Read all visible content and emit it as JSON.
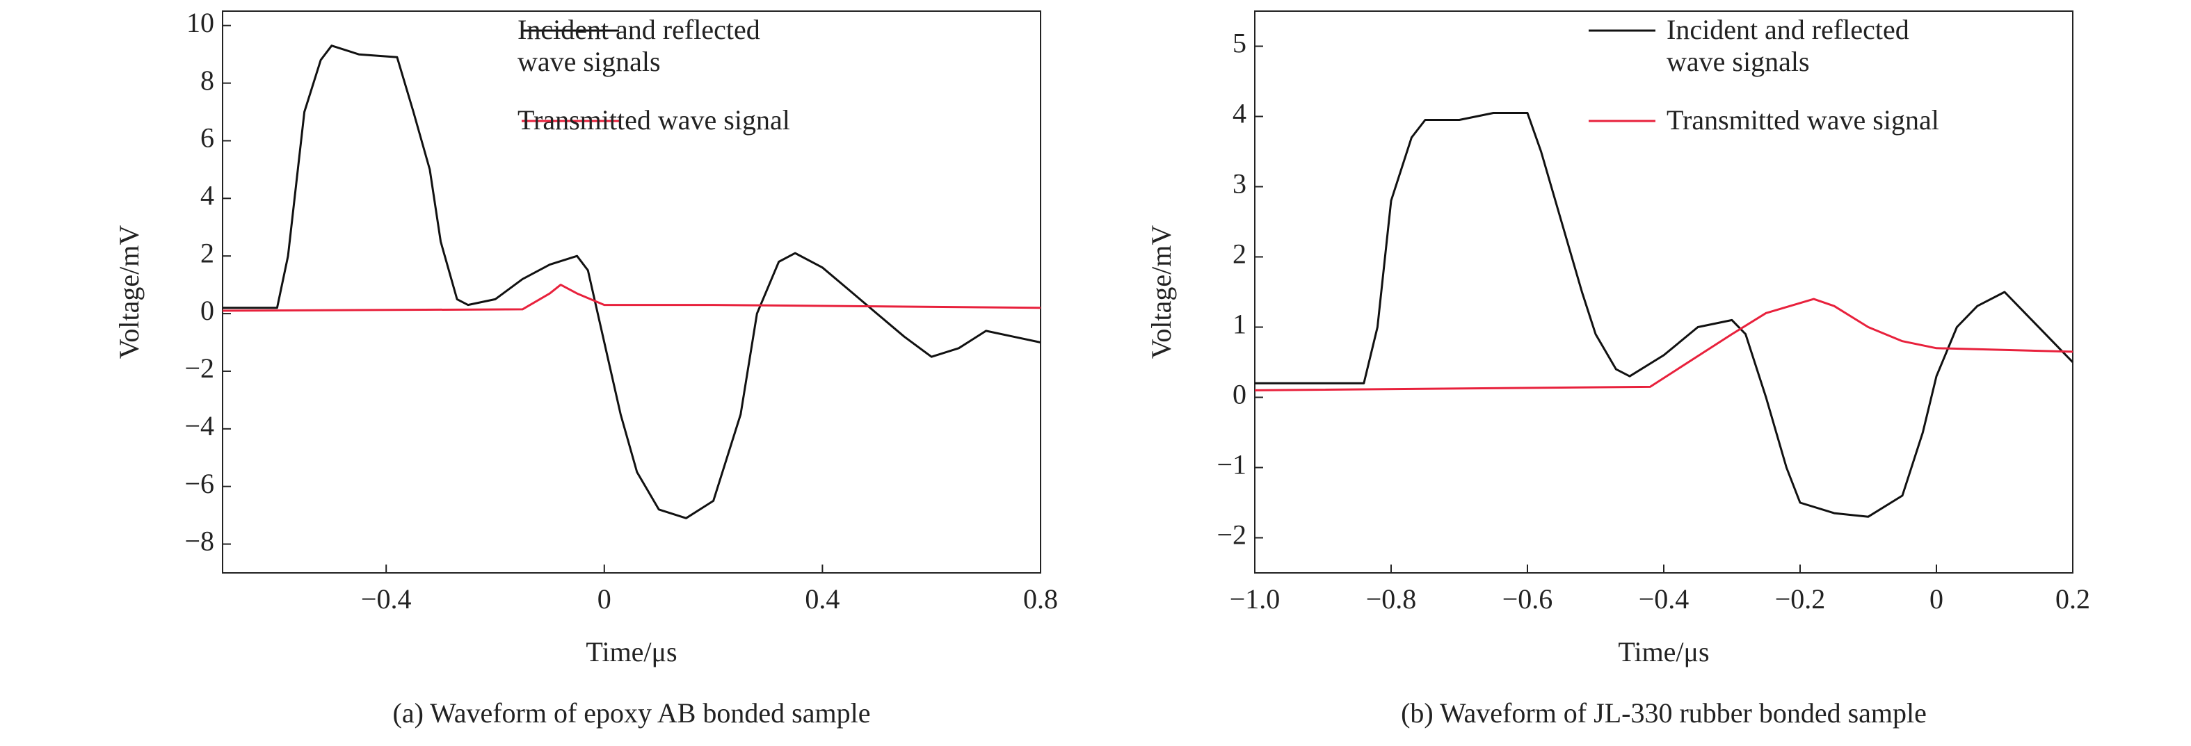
{
  "chart_data": [
    {
      "type": "line",
      "caption": "(a) Waveform of epoxy AB bonded sample",
      "xlabel": "Time/μs",
      "ylabel": "Voltage/mV",
      "xlim": [
        -0.7,
        0.8
      ],
      "xticks": [
        {
          "value": -0.4,
          "label": "−0.4"
        },
        0,
        0.4,
        0.8
      ],
      "ylim": [
        -9,
        10.5
      ],
      "yticks": [
        {
          "value": -8,
          "label": "−8"
        },
        {
          "value": -6,
          "label": "−6"
        },
        {
          "value": -4,
          "label": "−4"
        },
        {
          "value": -2,
          "label": "−2"
        },
        0,
        2,
        4,
        6,
        8,
        10
      ],
      "series": [
        {
          "name": "Incident and reflected wave signals",
          "color": "#111111",
          "x": [
            -0.7,
            -0.6,
            -0.58,
            -0.55,
            -0.52,
            -0.5,
            -0.45,
            -0.38,
            -0.35,
            -0.32,
            -0.3,
            -0.27,
            -0.25,
            -0.2,
            -0.15,
            -0.1,
            -0.05,
            -0.03,
            0,
            0.03,
            0.06,
            0.1,
            0.15,
            0.2,
            0.25,
            0.28,
            0.32,
            0.35,
            0.4,
            0.45,
            0.5,
            0.55,
            0.6,
            0.65,
            0.7,
            0.75,
            0.8
          ],
          "values": [
            0.2,
            0.2,
            2,
            7,
            8.8,
            9.3,
            9.0,
            8.9,
            7,
            5,
            2.5,
            0.5,
            0.3,
            0.5,
            1.2,
            1.7,
            2.0,
            1.5,
            -1,
            -3.5,
            -5.5,
            -6.8,
            -7.1,
            -6.5,
            -3.5,
            0,
            1.8,
            2.1,
            1.6,
            0.8,
            0,
            -0.8,
            -1.5,
            -1.2,
            -0.6,
            -0.8,
            -1.0
          ]
        },
        {
          "name": "Transmitted wave signal",
          "color": "#e8213c",
          "x": [
            -0.7,
            -0.15,
            -0.1,
            -0.08,
            -0.05,
            0,
            0.2,
            0.8
          ],
          "values": [
            0.1,
            0.15,
            0.7,
            1.0,
            0.7,
            0.3,
            0.3,
            0.2
          ]
        }
      ]
    },
    {
      "type": "line",
      "caption": "(b) Waveform of JL-330 rubber bonded sample",
      "xlabel": "Time/μs",
      "ylabel": "Voltage/mV",
      "xlim": [
        -1.0,
        0.2
      ],
      "xticks": [
        {
          "value": -1.0,
          "label": "−1.0"
        },
        {
          "value": -0.8,
          "label": "−0.8"
        },
        {
          "value": -0.6,
          "label": "−0.6"
        },
        {
          "value": -0.4,
          "label": "−0.4"
        },
        {
          "value": -0.2,
          "label": "−0.2"
        },
        0,
        0.2
      ],
      "ylim": [
        -2.5,
        5.5
      ],
      "yticks": [
        {
          "value": -2,
          "label": "−2"
        },
        {
          "value": -1,
          "label": "−1"
        },
        0,
        1,
        2,
        3,
        4,
        5
      ],
      "series": [
        {
          "name": "Incident and reflected wave signals",
          "color": "#111111",
          "x": [
            -1.0,
            -0.84,
            -0.82,
            -0.8,
            -0.77,
            -0.75,
            -0.7,
            -0.65,
            -0.6,
            -0.58,
            -0.55,
            -0.52,
            -0.5,
            -0.47,
            -0.45,
            -0.4,
            -0.35,
            -0.3,
            -0.28,
            -0.25,
            -0.22,
            -0.2,
            -0.15,
            -0.1,
            -0.05,
            -0.02,
            0,
            0.03,
            0.06,
            0.1,
            0.13,
            0.17,
            0.2
          ],
          "values": [
            0.2,
            0.2,
            1,
            2.8,
            3.7,
            3.95,
            3.95,
            4.05,
            4.05,
            3.5,
            2.5,
            1.5,
            0.9,
            0.4,
            0.3,
            0.6,
            1.0,
            1.1,
            0.9,
            0,
            -1.0,
            -1.5,
            -1.65,
            -1.7,
            -1.4,
            -0.5,
            0.3,
            1.0,
            1.3,
            1.5,
            1.2,
            0.8,
            0.5
          ]
        },
        {
          "name": "Transmitted wave signal",
          "color": "#e8213c",
          "x": [
            -1.0,
            -0.42,
            -0.38,
            -0.3,
            -0.25,
            -0.18,
            -0.15,
            -0.1,
            -0.05,
            0,
            0.2
          ],
          "values": [
            0.1,
            0.15,
            0.4,
            0.9,
            1.2,
            1.4,
            1.3,
            1.0,
            0.8,
            0.7,
            0.65
          ]
        }
      ]
    }
  ]
}
